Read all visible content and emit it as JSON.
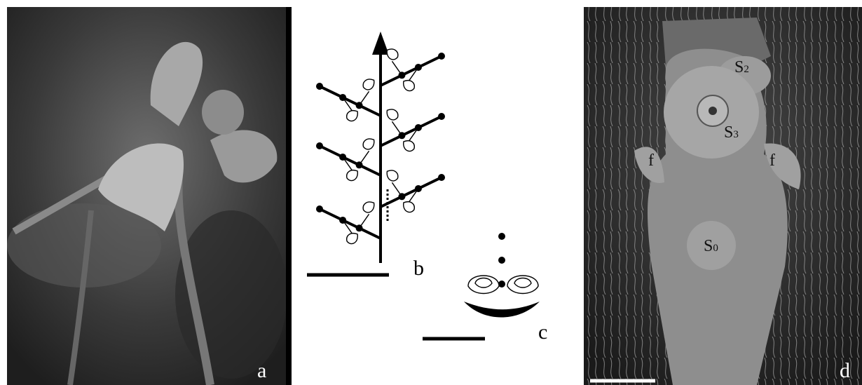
{
  "panels": {
    "a": {
      "label": "a"
    },
    "b": {
      "label": "b"
    },
    "c": {
      "label": "c"
    },
    "d": {
      "label": "d",
      "annotations": [
        {
          "main": "S",
          "sub": "2"
        },
        {
          "main": "S",
          "sub": "3"
        },
        {
          "main": "f"
        },
        {
          "main": "f"
        },
        {
          "main": "S",
          "sub": "0"
        }
      ]
    }
  }
}
